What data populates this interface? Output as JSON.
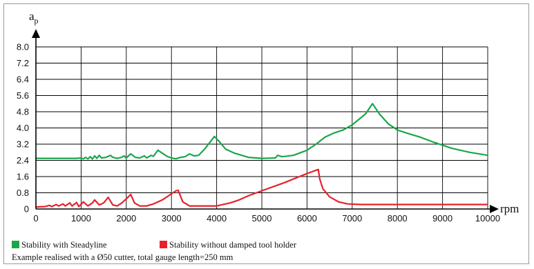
{
  "chart_data": {
    "type": "line",
    "ylabel_main": "a",
    "ylabel_sub": "p",
    "xlabel": "rpm",
    "xlim": [
      0,
      10000
    ],
    "ylim": [
      0,
      8.0
    ],
    "grid": true,
    "x_ticks": [
      "0",
      "1000",
      "2000",
      "3000",
      "4000",
      "5000",
      "6000",
      "7000",
      "8000",
      "9000",
      "10000"
    ],
    "y_ticks": [
      "0",
      "0.8",
      "1.6",
      "2.4",
      "3.2",
      "4.0",
      "4.8",
      "5.6",
      "6.4",
      "7.2",
      "8.0"
    ],
    "series": [
      {
        "name": "Stability with Steadyline",
        "color": "#1aa64a",
        "points": [
          [
            0,
            2.5
          ],
          [
            500,
            2.5
          ],
          [
            900,
            2.5
          ],
          [
            1000,
            2.52
          ],
          [
            1050,
            2.47
          ],
          [
            1100,
            2.55
          ],
          [
            1150,
            2.47
          ],
          [
            1200,
            2.58
          ],
          [
            1250,
            2.47
          ],
          [
            1300,
            2.62
          ],
          [
            1350,
            2.5
          ],
          [
            1400,
            2.65
          ],
          [
            1450,
            2.52
          ],
          [
            1550,
            2.55
          ],
          [
            1650,
            2.65
          ],
          [
            1700,
            2.55
          ],
          [
            1800,
            2.5
          ],
          [
            1900,
            2.55
          ],
          [
            1950,
            2.62
          ],
          [
            2000,
            2.52
          ],
          [
            2100,
            2.72
          ],
          [
            2200,
            2.55
          ],
          [
            2300,
            2.52
          ],
          [
            2400,
            2.62
          ],
          [
            2450,
            2.52
          ],
          [
            2550,
            2.65
          ],
          [
            2600,
            2.6
          ],
          [
            2700,
            2.9
          ],
          [
            2800,
            2.75
          ],
          [
            2900,
            2.6
          ],
          [
            3000,
            2.52
          ],
          [
            3100,
            2.48
          ],
          [
            3200,
            2.55
          ],
          [
            3300,
            2.58
          ],
          [
            3400,
            2.72
          ],
          [
            3500,
            2.62
          ],
          [
            3600,
            2.65
          ],
          [
            3750,
            3.0
          ],
          [
            3950,
            3.58
          ],
          [
            4050,
            3.35
          ],
          [
            4200,
            2.95
          ],
          [
            4400,
            2.75
          ],
          [
            4700,
            2.55
          ],
          [
            5000,
            2.5
          ],
          [
            5300,
            2.52
          ],
          [
            5350,
            2.65
          ],
          [
            5450,
            2.58
          ],
          [
            5700,
            2.65
          ],
          [
            6000,
            2.9
          ],
          [
            6200,
            3.2
          ],
          [
            6400,
            3.55
          ],
          [
            6600,
            3.75
          ],
          [
            6800,
            3.9
          ],
          [
            7000,
            4.15
          ],
          [
            7300,
            4.7
          ],
          [
            7450,
            5.2
          ],
          [
            7600,
            4.7
          ],
          [
            7800,
            4.2
          ],
          [
            8000,
            3.9
          ],
          [
            8200,
            3.75
          ],
          [
            8500,
            3.55
          ],
          [
            8800,
            3.3
          ],
          [
            9200,
            3.0
          ],
          [
            9600,
            2.8
          ],
          [
            10000,
            2.65
          ]
        ]
      },
      {
        "name": "Stability without damped tool holder",
        "color": "#e8202a",
        "points": [
          [
            0,
            0.1
          ],
          [
            200,
            0.12
          ],
          [
            300,
            0.18
          ],
          [
            350,
            0.12
          ],
          [
            450,
            0.22
          ],
          [
            500,
            0.15
          ],
          [
            600,
            0.25
          ],
          [
            650,
            0.15
          ],
          [
            750,
            0.3
          ],
          [
            800,
            0.15
          ],
          [
            900,
            0.32
          ],
          [
            950,
            0.12
          ],
          [
            1050,
            0.35
          ],
          [
            1150,
            0.15
          ],
          [
            1250,
            0.3
          ],
          [
            1300,
            0.45
          ],
          [
            1400,
            0.2
          ],
          [
            1500,
            0.3
          ],
          [
            1600,
            0.58
          ],
          [
            1700,
            0.2
          ],
          [
            1800,
            0.15
          ],
          [
            1900,
            0.3
          ],
          [
            2000,
            0.5
          ],
          [
            2100,
            0.72
          ],
          [
            2180,
            0.3
          ],
          [
            2300,
            0.15
          ],
          [
            2450,
            0.15
          ],
          [
            2600,
            0.25
          ],
          [
            2800,
            0.45
          ],
          [
            3000,
            0.75
          ],
          [
            3100,
            0.9
          ],
          [
            3150,
            0.92
          ],
          [
            3250,
            0.35
          ],
          [
            3400,
            0.15
          ],
          [
            3700,
            0.15
          ],
          [
            4000,
            0.15
          ],
          [
            4300,
            0.3
          ],
          [
            4500,
            0.45
          ],
          [
            4700,
            0.65
          ],
          [
            5000,
            0.9
          ],
          [
            5500,
            1.3
          ],
          [
            6000,
            1.75
          ],
          [
            6250,
            1.95
          ],
          [
            6280,
            1.5
          ],
          [
            6350,
            1.0
          ],
          [
            6500,
            0.6
          ],
          [
            6700,
            0.35
          ],
          [
            6900,
            0.25
          ],
          [
            7200,
            0.22
          ],
          [
            8000,
            0.22
          ],
          [
            9000,
            0.22
          ],
          [
            10000,
            0.22
          ]
        ]
      }
    ],
    "legend": [
      {
        "label": "Stability with Steadyline",
        "color": "#1aa64a"
      },
      {
        "label": "Stability without damped tool holder",
        "color": "#e8202a"
      }
    ],
    "legend_position": "bottom-left",
    "note": "Example realised with a Ø50 cutter, total gauge length=250 mm"
  }
}
